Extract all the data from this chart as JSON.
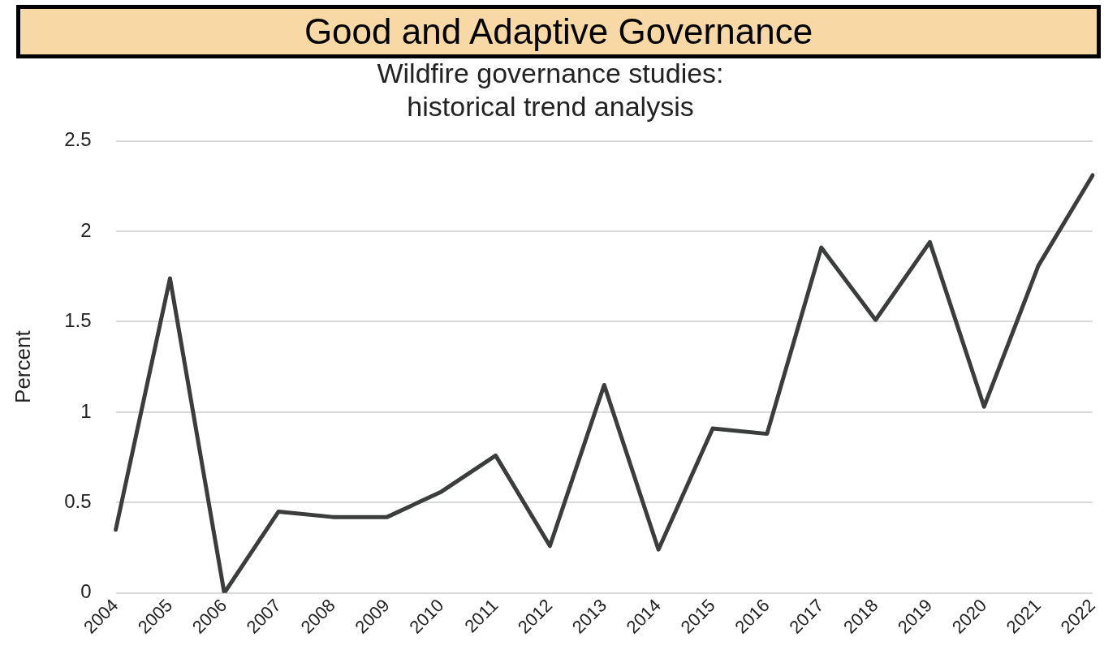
{
  "chart_data": {
    "type": "line",
    "title": [
      "Wildfire governance studies:",
      "historical trend analysis"
    ],
    "ylabel": "Percent",
    "annotations": [
      "Good and Adaptive Governance"
    ],
    "categories": [
      "2004",
      "2005",
      "2006",
      "2007",
      "2008",
      "2009",
      "2010",
      "2011",
      "2012",
      "2013",
      "2014",
      "2015",
      "2016",
      "2017",
      "2018",
      "2019",
      "2020",
      "2021",
      "2022"
    ],
    "series": [
      {
        "color": "#3a3d3c",
        "values": [
          0.35,
          1.74,
          0,
          0.45,
          0.42,
          0.42,
          0.56,
          0.76,
          0.26,
          1.15,
          0.24,
          0.91,
          0.88,
          1.91,
          1.51,
          1.94,
          1.03,
          1.81,
          2.31
        ]
      }
    ],
    "ylim": [
      0,
      2.5
    ],
    "yticks": [
      0,
      0.5,
      1,
      1.5,
      2,
      2.5
    ],
    "grid": "y",
    "legend": false,
    "marker": "none",
    "line_style": "solid"
  }
}
